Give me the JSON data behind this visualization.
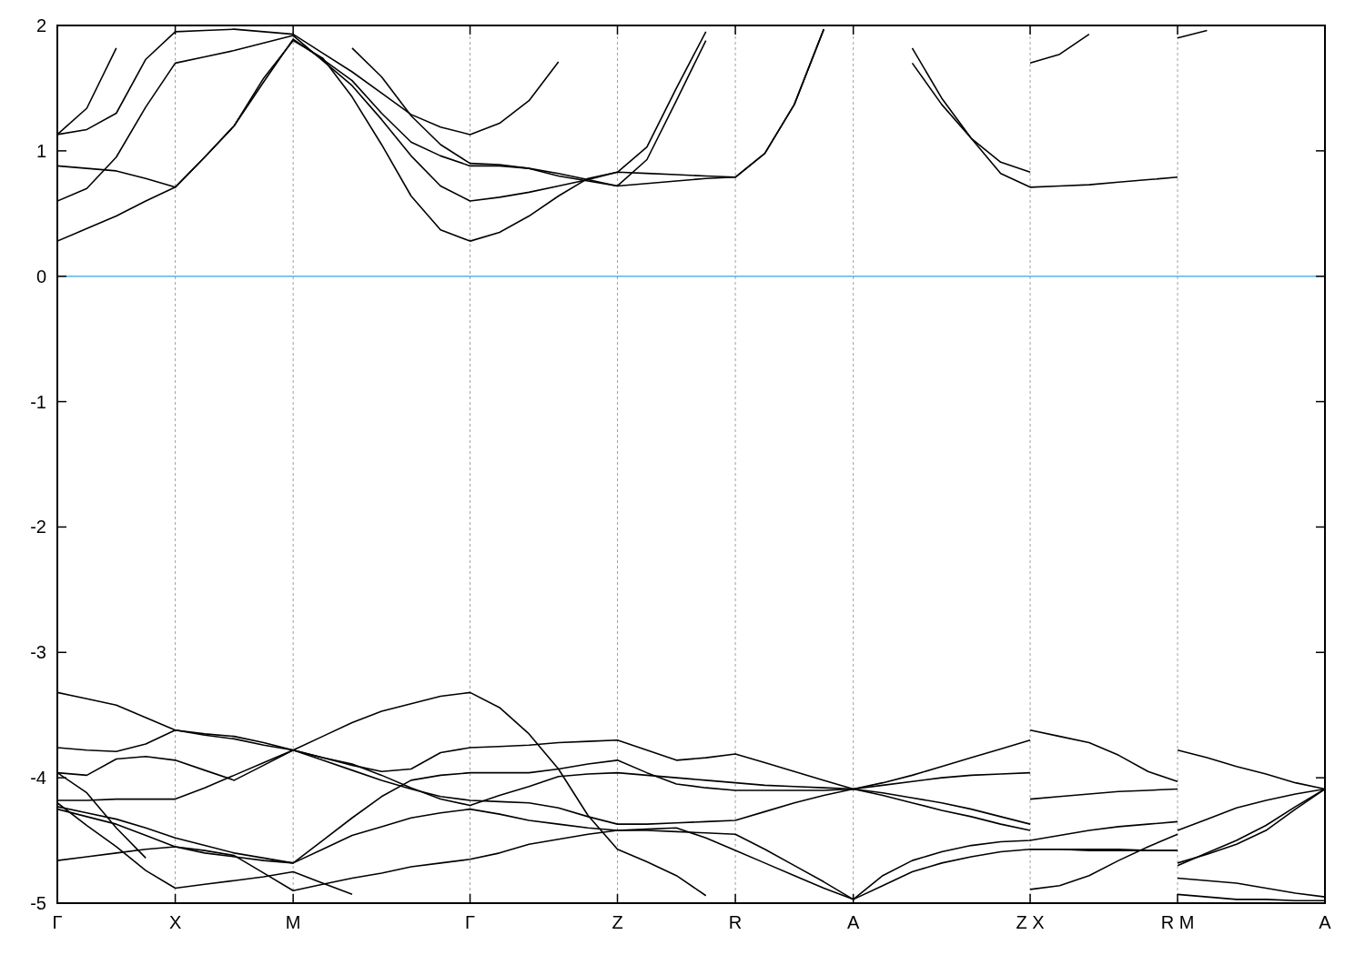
{
  "chart_data": {
    "type": "line",
    "categories": [
      "Γ",
      null,
      null,
      null,
      "X",
      null,
      null,
      null,
      "M",
      null,
      null,
      null,
      null,
      null,
      "Γ",
      null,
      null,
      null,
      null,
      "Z",
      null,
      null,
      null,
      "R",
      null,
      null,
      null,
      "A",
      null,
      null,
      null,
      null,
      null,
      "Z X",
      null,
      null,
      null,
      null,
      "R M",
      null,
      null,
      null,
      null,
      "A"
    ],
    "ylim": [
      -5,
      2
    ],
    "yticks": [
      -5,
      -4,
      -3,
      -2,
      -1,
      0,
      1,
      2
    ],
    "grid": "x",
    "ref_lines": [
      {
        "axis": "y",
        "value": 0,
        "color": "#56b4e9"
      }
    ],
    "series": [
      {
        "color": "#000000",
        "values": [
          0.28,
          0.38,
          0.48,
          0.6,
          0.71,
          0.95,
          1.2,
          1.58,
          1.88,
          1.74,
          1.43,
          1.05,
          0.64,
          0.37,
          0.28,
          0.35,
          0.48,
          0.64,
          0.78,
          0.83,
          0.82,
          0.81,
          0.8,
          0.79,
          0.98,
          1.37,
          1.97,
          null,
          null,
          null,
          null,
          null,
          null,
          null,
          null,
          null,
          null,
          null,
          null,
          null,
          null,
          null,
          null,
          null
        ]
      },
      {
        "color": "#000000",
        "values": [
          0.6,
          0.7,
          0.95,
          1.35,
          1.7,
          1.75,
          1.8,
          1.86,
          1.92,
          1.72,
          1.52,
          1.25,
          0.96,
          0.72,
          0.6,
          0.63,
          0.67,
          0.72,
          0.77,
          0.83,
          1.03,
          1.5,
          1.95,
          null,
          null,
          null,
          null,
          null,
          null,
          null,
          null,
          null,
          null,
          null,
          null,
          null,
          null,
          null,
          null,
          null,
          null,
          null,
          null,
          null
        ]
      },
      {
        "color": "#000000",
        "values": [
          0.88,
          0.86,
          0.84,
          0.78,
          0.71,
          0.95,
          1.2,
          1.55,
          1.89,
          1.73,
          1.56,
          1.3,
          1.07,
          0.96,
          0.88,
          0.88,
          0.86,
          0.82,
          0.77,
          0.72,
          0.74,
          0.76,
          0.78,
          0.79,
          0.98,
          1.37,
          1.97,
          null,
          null,
          null,
          null,
          null,
          null,
          null,
          null,
          null,
          null,
          null,
          null,
          null,
          null,
          null,
          null,
          null
        ]
      },
      {
        "color": "#000000",
        "values": [
          1.13,
          1.17,
          1.3,
          1.73,
          1.95,
          1.96,
          1.97,
          1.95,
          1.93,
          1.78,
          1.63,
          1.46,
          1.29,
          1.19,
          1.13,
          1.22,
          1.4,
          1.71,
          null,
          null,
          null,
          null,
          null,
          null,
          null,
          null,
          null,
          null,
          null,
          null,
          null,
          null,
          null,
          null,
          null,
          null,
          null,
          null,
          null,
          null,
          null,
          null,
          null,
          null
        ]
      },
      {
        "color": "#000000",
        "values": [
          1.13,
          1.34,
          1.82,
          null,
          null,
          null,
          null,
          null,
          null,
          null,
          null,
          null,
          null,
          null,
          null,
          null,
          null,
          null,
          null,
          null,
          null,
          null,
          null,
          null,
          null,
          null,
          null,
          null,
          null,
          null,
          null,
          null,
          null,
          null,
          null,
          null,
          null,
          null,
          null,
          null,
          null,
          null,
          null,
          null
        ]
      },
      {
        "color": "#000000",
        "values": [
          null,
          null,
          null,
          null,
          null,
          null,
          null,
          null,
          null,
          null,
          1.82,
          1.59,
          1.28,
          1.05,
          0.9,
          0.89,
          0.86,
          0.8,
          0.76,
          0.72,
          0.93,
          1.4,
          1.88,
          null,
          null,
          null,
          null,
          null,
          null,
          null,
          null,
          null,
          null,
          null,
          null,
          null,
          null,
          null,
          null,
          null,
          null,
          null,
          null,
          null
        ]
      },
      {
        "color": "#000000",
        "values": [
          null,
          null,
          null,
          null,
          null,
          null,
          null,
          null,
          null,
          null,
          null,
          null,
          null,
          null,
          null,
          null,
          null,
          null,
          null,
          null,
          null,
          null,
          null,
          null,
          null,
          null,
          null,
          null,
          null,
          1.7,
          1.37,
          1.1,
          0.91,
          0.83,
          null,
          null,
          null,
          null,
          null,
          null,
          null,
          null,
          null,
          null
        ]
      },
      {
        "color": "#000000",
        "values": [
          null,
          null,
          null,
          null,
          null,
          null,
          null,
          null,
          null,
          null,
          null,
          null,
          null,
          null,
          null,
          null,
          null,
          null,
          null,
          null,
          null,
          null,
          null,
          null,
          null,
          null,
          null,
          null,
          null,
          null,
          null,
          null,
          null,
          1.7,
          1.77,
          1.93,
          null,
          null,
          null,
          null,
          null,
          null,
          null,
          null
        ]
      },
      {
        "color": "#000000",
        "values": [
          null,
          null,
          null,
          null,
          null,
          null,
          null,
          null,
          null,
          null,
          null,
          null,
          null,
          null,
          null,
          null,
          null,
          null,
          null,
          null,
          null,
          null,
          null,
          null,
          null,
          null,
          null,
          null,
          null,
          1.82,
          1.42,
          1.1,
          0.82,
          0.71,
          0.72,
          0.73,
          0.75,
          0.77,
          0.79,
          null,
          null,
          null,
          null,
          null
        ]
      },
      {
        "color": "#000000",
        "values": [
          null,
          null,
          null,
          null,
          null,
          null,
          null,
          null,
          null,
          null,
          null,
          null,
          null,
          null,
          null,
          null,
          null,
          null,
          null,
          null,
          null,
          null,
          null,
          null,
          null,
          null,
          null,
          null,
          null,
          null,
          null,
          null,
          null,
          null,
          null,
          null,
          null,
          null,
          1.9,
          1.96,
          null,
          null,
          null,
          null
        ]
      },
      {
        "color": "#000000",
        "values": [
          -3.32,
          -3.37,
          -3.42,
          -3.52,
          -3.62,
          -3.65,
          -3.67,
          -3.72,
          -3.78,
          -3.67,
          -3.56,
          -3.47,
          -3.41,
          -3.35,
          -3.32,
          -3.44,
          -3.65,
          -3.93,
          -4.3,
          -4.57,
          -4.67,
          -4.78,
          -4.94,
          null,
          null,
          null,
          null,
          null,
          null,
          null,
          null,
          null,
          null,
          null,
          null,
          null,
          null,
          null,
          null,
          null,
          null,
          null,
          null,
          null
        ]
      },
      {
        "color": "#000000",
        "values": [
          -3.76,
          -3.78,
          -3.79,
          -3.73,
          -3.62,
          -3.66,
          -3.69,
          -3.74,
          -3.78,
          -3.84,
          -3.9,
          -3.95,
          -3.93,
          -3.8,
          -3.76,
          -3.75,
          -3.74,
          -3.72,
          -3.71,
          -3.7,
          -3.78,
          -3.86,
          -3.84,
          -3.81,
          -3.88,
          -3.95,
          -4.02,
          -4.09,
          -4.04,
          -3.98,
          -3.91,
          -3.84,
          -3.77,
          -3.7,
          null,
          null,
          null,
          null,
          null,
          null,
          null,
          null,
          null,
          null
        ]
      },
      {
        "color": "#000000",
        "values": [
          null,
          null,
          null,
          null,
          null,
          null,
          null,
          null,
          null,
          null,
          null,
          null,
          null,
          null,
          null,
          null,
          null,
          null,
          null,
          null,
          null,
          null,
          null,
          null,
          null,
          null,
          null,
          null,
          null,
          null,
          null,
          null,
          null,
          -3.62,
          -3.67,
          -3.72,
          -3.82,
          -3.95,
          -4.03,
          null,
          null,
          null,
          null,
          null
        ]
      },
      {
        "color": "#000000",
        "values": [
          null,
          null,
          null,
          null,
          null,
          null,
          null,
          null,
          null,
          null,
          null,
          null,
          null,
          null,
          null,
          null,
          null,
          null,
          null,
          null,
          null,
          null,
          null,
          null,
          null,
          null,
          null,
          null,
          null,
          null,
          null,
          null,
          null,
          null,
          null,
          null,
          null,
          null,
          -3.78,
          -3.84,
          -3.91,
          -3.97,
          -4.04,
          -4.09
        ]
      },
      {
        "color": "#000000",
        "values": [
          -3.96,
          -3.98,
          -3.85,
          -3.83,
          -3.86,
          -3.94,
          -4.02,
          -3.9,
          -3.78,
          -3.86,
          -3.94,
          -4.02,
          -4.09,
          -4.15,
          -4.18,
          -4.19,
          -4.2,
          -4.24,
          -4.31,
          -4.37,
          -4.37,
          -4.36,
          -4.35,
          -4.34,
          -4.27,
          -4.2,
          -4.14,
          -4.09,
          -4.12,
          -4.16,
          -4.2,
          -4.25,
          -4.31,
          -4.37,
          null,
          null,
          null,
          null,
          null,
          null,
          null,
          null,
          null,
          null
        ]
      },
      {
        "color": "#000000",
        "values": [
          null,
          null,
          null,
          null,
          null,
          null,
          null,
          null,
          null,
          null,
          null,
          null,
          null,
          null,
          null,
          null,
          null,
          null,
          null,
          null,
          null,
          null,
          null,
          null,
          null,
          null,
          null,
          null,
          null,
          null,
          null,
          null,
          null,
          null,
          null,
          null,
          null,
          null,
          -4.7,
          -4.6,
          -4.5,
          -4.38,
          -4.23,
          -4.09
        ]
      },
      {
        "color": "#000000",
        "values": [
          -4.18,
          -4.18,
          -4.17,
          -4.17,
          -4.17,
          -4.08,
          -3.98,
          -3.88,
          -3.78,
          -3.84,
          -3.89,
          -3.98,
          -4.08,
          -4.17,
          -4.22,
          -4.14,
          -4.07,
          -3.99,
          -3.97,
          -3.96,
          -3.98,
          -4.0,
          -4.02,
          -4.04,
          -4.06,
          -4.07,
          -4.08,
          -4.09,
          -4.06,
          -4.03,
          -4.0,
          -3.98,
          -3.97,
          -3.96,
          null,
          null,
          null,
          null,
          null,
          null,
          null,
          null,
          null,
          null
        ]
      },
      {
        "color": "#000000",
        "values": [
          null,
          null,
          null,
          null,
          null,
          null,
          null,
          null,
          null,
          null,
          null,
          null,
          null,
          null,
          null,
          null,
          null,
          null,
          null,
          null,
          null,
          null,
          null,
          null,
          null,
          null,
          null,
          null,
          null,
          null,
          null,
          null,
          null,
          -4.17,
          -4.15,
          -4.13,
          -4.11,
          -4.1,
          -4.09,
          null,
          null,
          null,
          null,
          null
        ]
      },
      {
        "color": "#000000",
        "values": [
          -4.25,
          -4.31,
          -4.37,
          -4.46,
          -4.55,
          -4.6,
          -4.63,
          -4.66,
          -4.68,
          -4.5,
          -4.32,
          -4.15,
          -4.02,
          -3.98,
          -3.96,
          -3.96,
          -3.96,
          -3.93,
          -3.89,
          -3.86,
          -3.96,
          -4.05,
          -4.08,
          -4.1,
          -4.1,
          -4.1,
          -4.1,
          -4.09,
          -4.14,
          -4.2,
          -4.26,
          -4.31,
          -4.37,
          -4.42,
          null,
          null,
          null,
          null,
          null,
          null,
          null,
          null,
          null,
          null
        ]
      },
      {
        "color": "#000000",
        "values": [
          null,
          null,
          null,
          null,
          null,
          null,
          null,
          null,
          null,
          null,
          null,
          null,
          null,
          null,
          null,
          null,
          null,
          null,
          null,
          null,
          null,
          null,
          null,
          null,
          null,
          null,
          null,
          null,
          null,
          null,
          null,
          null,
          null,
          -4.57,
          -4.57,
          -4.57,
          -4.57,
          -4.58,
          -4.58,
          null,
          null,
          null,
          null,
          null
        ]
      },
      {
        "color": "#000000",
        "values": [
          null,
          null,
          null,
          null,
          null,
          null,
          null,
          null,
          null,
          null,
          null,
          null,
          null,
          null,
          null,
          null,
          null,
          null,
          null,
          null,
          null,
          null,
          null,
          null,
          null,
          null,
          null,
          null,
          null,
          null,
          null,
          null,
          null,
          null,
          null,
          null,
          null,
          null,
          -4.42,
          -4.33,
          -4.24,
          -4.18,
          -4.13,
          -4.09
        ]
      },
      {
        "color": "#000000",
        "values": [
          -4.66,
          -4.63,
          -4.6,
          -4.57,
          -4.55,
          -4.58,
          -4.62,
          -4.76,
          -4.9,
          -4.85,
          -4.8,
          -4.76,
          -4.71,
          -4.68,
          -4.65,
          -4.6,
          -4.53,
          -4.49,
          -4.45,
          -4.42,
          -4.42,
          -4.43,
          -4.44,
          -4.45,
          -4.57,
          -4.7,
          -4.83,
          -4.97,
          -4.86,
          -4.75,
          -4.68,
          -4.63,
          -4.59,
          -4.57,
          -4.57,
          -4.58,
          -4.58,
          -4.58,
          -4.58,
          null,
          null,
          null,
          null,
          null
        ]
      },
      {
        "color": "#000000",
        "values": [
          null,
          null,
          null,
          null,
          null,
          null,
          null,
          null,
          null,
          null,
          null,
          null,
          null,
          null,
          null,
          null,
          null,
          null,
          null,
          null,
          null,
          null,
          null,
          null,
          null,
          null,
          null,
          null,
          null,
          null,
          null,
          null,
          null,
          null,
          null,
          null,
          null,
          null,
          -4.8,
          -4.82,
          -4.84,
          -4.88,
          -4.92,
          -4.95
        ]
      },
      {
        "color": "#000000",
        "values": [
          -4.23,
          -4.28,
          -4.33,
          -4.4,
          -4.48,
          -4.54,
          -4.6,
          -4.64,
          -4.68,
          -4.57,
          -4.46,
          -4.39,
          -4.32,
          -4.28,
          -4.25,
          -4.29,
          -4.34,
          -4.37,
          -4.4,
          -4.42,
          -4.41,
          -4.4,
          -4.48,
          -4.58,
          -4.68,
          -4.78,
          -4.88,
          -4.97,
          null,
          null,
          null,
          null,
          null,
          null,
          null,
          null,
          null,
          null,
          null,
          null,
          null,
          null,
          null,
          null
        ]
      },
      {
        "color": "#000000",
        "values": [
          -4.2,
          -4.38,
          -4.55,
          -4.74,
          -4.88,
          -4.85,
          -4.82,
          -4.79,
          -4.75,
          -4.84,
          -4.93,
          null,
          null,
          null,
          null,
          null,
          null,
          null,
          null,
          null,
          null,
          null,
          null,
          null,
          null,
          null,
          null,
          null,
          null,
          null,
          null,
          null,
          null,
          null,
          null,
          null,
          null,
          null,
          null,
          null,
          null,
          null,
          null,
          null
        ]
      },
      {
        "color": "#000000",
        "values": [
          -3.96,
          -4.12,
          -4.4,
          -4.64,
          null,
          null,
          null,
          null,
          null,
          null,
          null,
          null,
          null,
          null,
          null,
          null,
          null,
          null,
          null,
          null,
          null,
          null,
          null,
          null,
          null,
          null,
          null,
          null,
          null,
          null,
          null,
          null,
          null,
          null,
          null,
          null,
          null,
          null,
          null,
          null,
          null,
          null,
          null,
          null
        ]
      },
      {
        "color": "#000000",
        "values": [
          null,
          null,
          null,
          null,
          null,
          null,
          null,
          null,
          null,
          null,
          null,
          null,
          null,
          null,
          null,
          null,
          null,
          null,
          null,
          null,
          null,
          null,
          null,
          null,
          null,
          null,
          null,
          -4.97,
          -4.78,
          -4.66,
          -4.59,
          -4.54,
          -4.51,
          -4.5,
          -4.46,
          -4.42,
          -4.39,
          -4.37,
          -4.35,
          null,
          null,
          null,
          null,
          null
        ]
      },
      {
        "color": "#000000",
        "values": [
          null,
          null,
          null,
          null,
          null,
          null,
          null,
          null,
          null,
          null,
          null,
          null,
          null,
          null,
          null,
          null,
          null,
          null,
          null,
          null,
          null,
          null,
          null,
          null,
          null,
          null,
          null,
          null,
          null,
          null,
          null,
          null,
          null,
          -4.89,
          -4.86,
          -4.78,
          -4.66,
          -4.55,
          -4.45,
          null,
          null,
          null,
          null,
          null
        ]
      },
      {
        "color": "#000000",
        "values": [
          null,
          null,
          null,
          null,
          null,
          null,
          null,
          null,
          null,
          null,
          null,
          null,
          null,
          null,
          null,
          null,
          null,
          null,
          null,
          null,
          null,
          null,
          null,
          null,
          null,
          null,
          null,
          null,
          null,
          null,
          null,
          null,
          null,
          null,
          null,
          null,
          null,
          null,
          -4.68,
          -4.61,
          -4.53,
          -4.42,
          -4.25,
          -4.09
        ]
      },
      {
        "color": "#000000",
        "values": [
          null,
          null,
          null,
          null,
          null,
          null,
          null,
          null,
          null,
          null,
          null,
          null,
          null,
          null,
          null,
          null,
          null,
          null,
          null,
          null,
          null,
          null,
          null,
          null,
          null,
          null,
          null,
          null,
          null,
          null,
          null,
          null,
          null,
          null,
          null,
          null,
          null,
          null,
          -4.93,
          -4.95,
          -4.97,
          -4.97,
          -4.98,
          -4.98
        ]
      }
    ]
  }
}
